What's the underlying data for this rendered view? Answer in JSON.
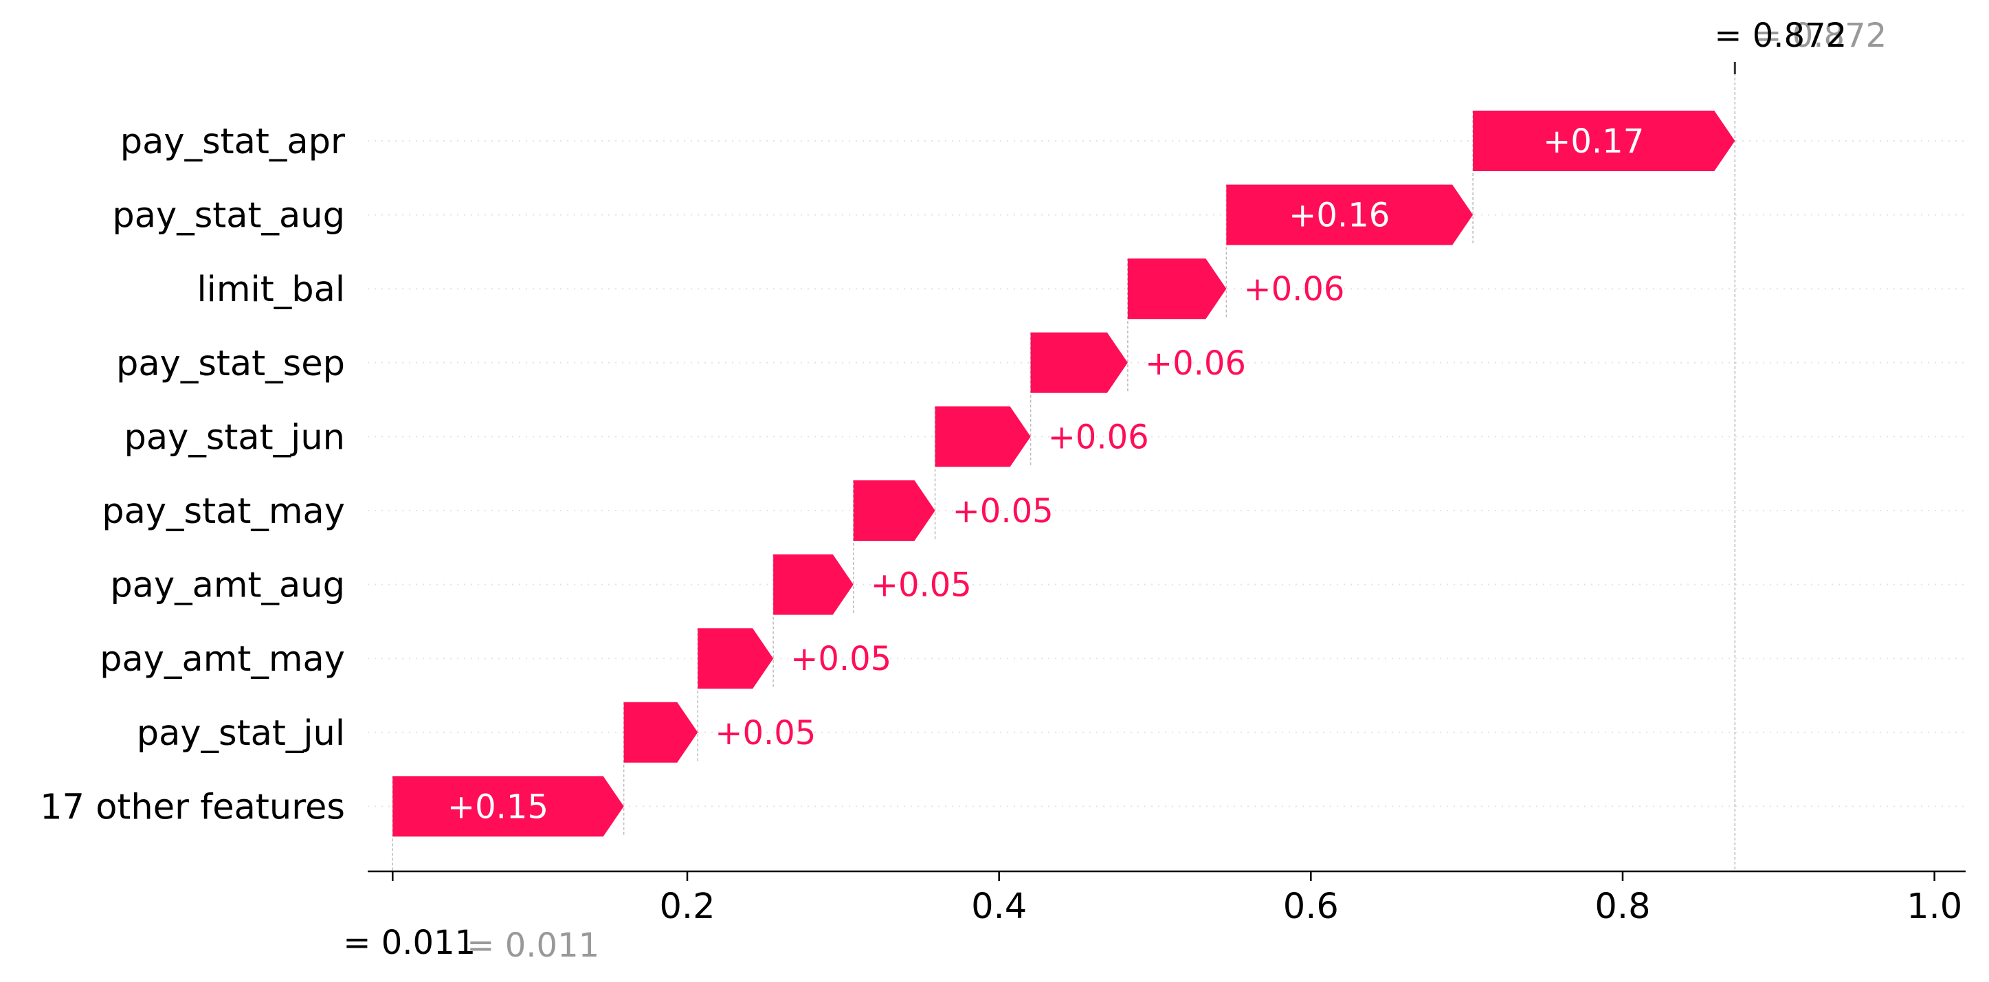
{
  "chart_data": {
    "type": "waterfall",
    "title": "",
    "xlabel": "",
    "ylabel": "",
    "xlim": [
      -0.005,
      1.02
    ],
    "base_value": 0.011,
    "final_value": 0.872,
    "base_value_text": "= 0.011",
    "base_value_ghost_text": "= 0.011",
    "final_value_text": "= 0.872",
    "final_value_ghost_text": "= 0.872",
    "features": [
      {
        "name": "pay_stat_apr",
        "value": 0.17,
        "label": "+0.17"
      },
      {
        "name": "pay_stat_aug",
        "value": 0.16,
        "label": "+0.16"
      },
      {
        "name": "limit_bal",
        "value": 0.064,
        "label": "+0.06"
      },
      {
        "name": "pay_stat_sep",
        "value": 0.063,
        "label": "+0.06"
      },
      {
        "name": "pay_stat_jun",
        "value": 0.062,
        "label": "+0.06"
      },
      {
        "name": "pay_stat_may",
        "value": 0.053,
        "label": "+0.05"
      },
      {
        "name": "pay_amt_aug",
        "value": 0.052,
        "label": "+0.05"
      },
      {
        "name": "pay_amt_may",
        "value": 0.049,
        "label": "+0.05"
      },
      {
        "name": "pay_stat_jul",
        "value": 0.048,
        "label": "+0.05"
      },
      {
        "name": "17 other features",
        "value": 0.15,
        "label": "+0.15"
      }
    ],
    "x_ticks": [
      0.2,
      0.4,
      0.6,
      0.8,
      1.0
    ],
    "x_tick_labels": [
      "0.2",
      "0.4",
      "0.6",
      "0.8",
      "1.0"
    ],
    "grid": "horizontal-dotted",
    "colors": {
      "positive": "#ff0d57",
      "label_inside": "#ffffff",
      "text": "#000000",
      "ghost_text": "#999999",
      "gridline": "#e4e4e4",
      "connector": "#bbbbbb"
    }
  }
}
